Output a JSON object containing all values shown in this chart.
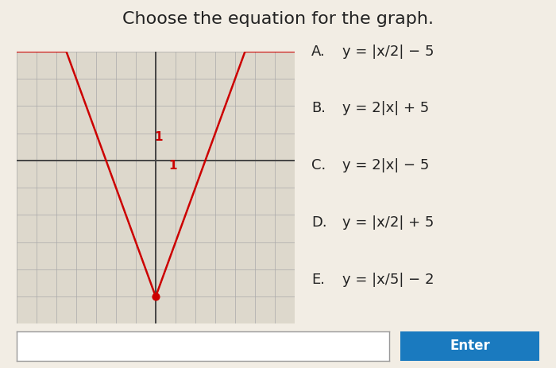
{
  "title": "Choose the equation for the graph.",
  "title_fontsize": 16,
  "title_color": "#222222",
  "bg_color": "#f2ede4",
  "graph_bg": "#ddd8cc",
  "grid_color": "#aaaaaa",
  "axis_color": "#444444",
  "curve_color": "#cc0000",
  "curve_lw": 1.8,
  "vertex_color": "#cc0000",
  "vertex_size": 40,
  "scale_label_color": "#cc0000",
  "scale_label_fontsize": 11,
  "xmin": -7,
  "xmax": 7,
  "ymin": -6,
  "ymax": 4,
  "options": [
    "A.  y = |½ x| − 5",
    "B.  y = 2|x| + 5",
    "C.  y = 2|x| − 5",
    "D.  y = |½ x| + 5",
    "E.  y = |⅕ x| − 2"
  ],
  "options_fontsize": 13,
  "enter_button_color": "#1a7abf",
  "enter_button_text": "Enter",
  "enter_button_fontsize": 12
}
